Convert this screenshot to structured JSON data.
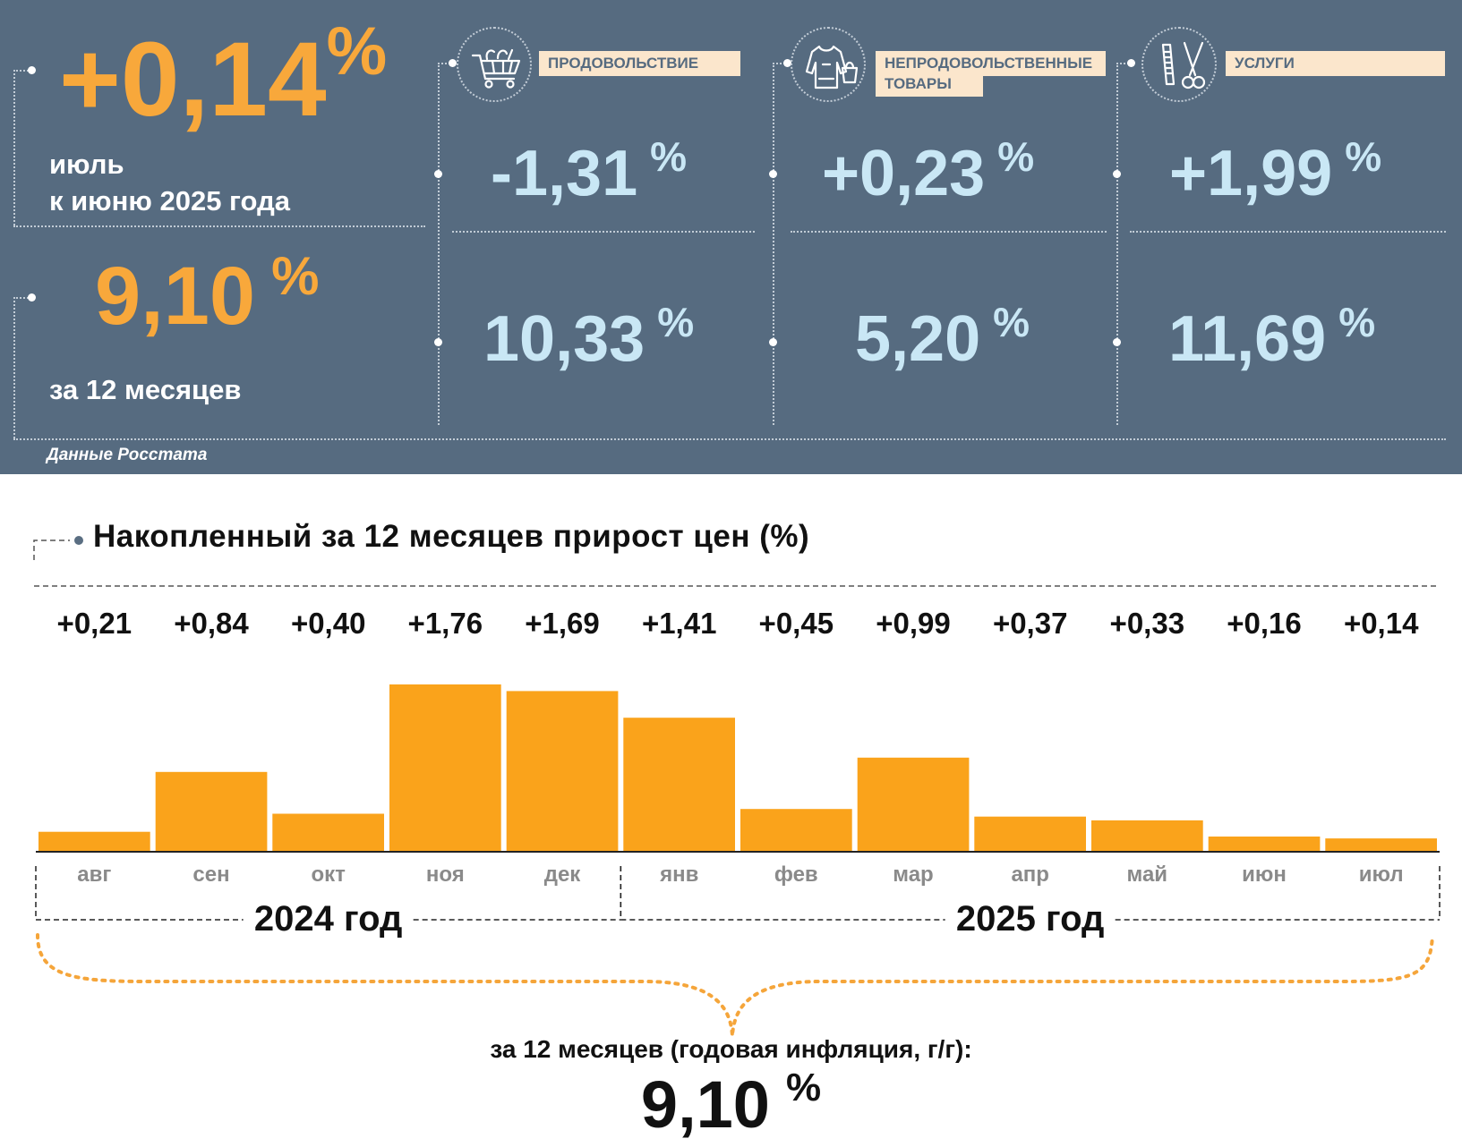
{
  "header": {
    "monthly": {
      "value": "+0,14",
      "unit": "%",
      "line1": "июль",
      "line2": "к июню 2025 года"
    },
    "annual": {
      "value": "9,10",
      "unit": "%",
      "label": "за 12 месяцев"
    },
    "source": "Данные Росстата"
  },
  "categories": [
    {
      "label": "ПРОДОВОЛЬСТВИЕ",
      "label_line2": "",
      "icon": "shopping-cart-icon",
      "monthly": "-1,31",
      "annual": "10,33",
      "unit": "%"
    },
    {
      "label": "НЕПРОДОВОЛЬСТВЕННЫЕ",
      "label_line2": "ТОВАРЫ",
      "icon": "clothing-icon",
      "monthly": "+0,23",
      "annual": "5,20",
      "unit": "%"
    },
    {
      "label": "УСЛУГИ",
      "label_line2": "",
      "icon": "scissors-comb-icon",
      "monthly": "+1,99",
      "annual": "11,69",
      "unit": "%"
    }
  ],
  "chart_data": {
    "type": "bar",
    "title": "Накопленный за 12 месяцев прирост цен (%)",
    "categories": [
      "авг",
      "сен",
      "окт",
      "ноя",
      "дек",
      "янв",
      "фев",
      "мар",
      "апр",
      "май",
      "июн",
      "июл"
    ],
    "values": [
      0.21,
      0.84,
      0.4,
      1.76,
      1.69,
      1.41,
      0.45,
      0.99,
      0.37,
      0.33,
      0.16,
      0.14
    ],
    "value_labels": [
      "+0,21",
      "+0,84",
      "+0,40",
      "+1,76",
      "+1,69",
      "+1,41",
      "+0,45",
      "+0,99",
      "+0,37",
      "+0,33",
      "+0,16",
      "+0,14"
    ],
    "year_groups": [
      {
        "label": "2024 год",
        "start": 0,
        "end": 4
      },
      {
        "label": "2025 год",
        "start": 5,
        "end": 11
      }
    ],
    "ylim": [
      0,
      1.76
    ],
    "grid": false,
    "bar_color": "#faa31b"
  },
  "summary": {
    "caption": "за 12 месяцев (годовая инфляция, г/г):",
    "value": "9,10",
    "unit": "%"
  }
}
